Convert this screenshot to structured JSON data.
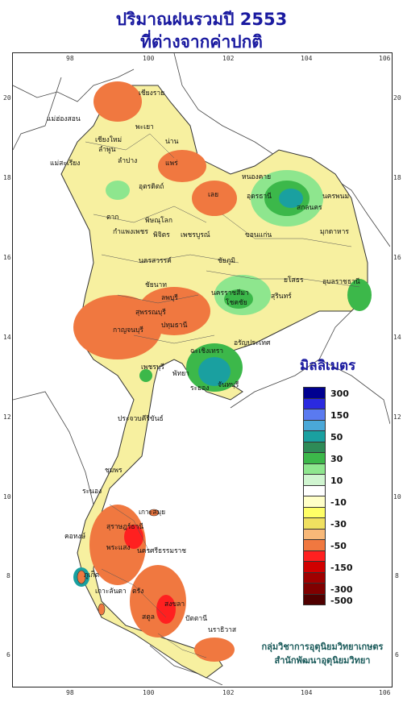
{
  "title": {
    "line1": "ปริมาณฝนรวมปี 2553",
    "line2": "ที่ต่างจากค่าปกติ"
  },
  "axes": {
    "x_ticks": [
      "98",
      "100",
      "102",
      "104",
      "106"
    ],
    "y_ticks": [
      "20",
      "18",
      "16",
      "14",
      "12",
      "10",
      "8",
      "6"
    ]
  },
  "legend": {
    "title": "มิลลิเมตร",
    "entries": [
      {
        "label": "300",
        "color": "#000090"
      },
      {
        "label": "",
        "color": "#2a2ae0"
      },
      {
        "label": "150",
        "color": "#5a7af0"
      },
      {
        "label": "",
        "color": "#4aa8d8"
      },
      {
        "label": "50",
        "color": "#1aa0a0"
      },
      {
        "label": "",
        "color": "#2e8b57"
      },
      {
        "label": "30",
        "color": "#3cb84a"
      },
      {
        "label": "",
        "color": "#8ee68e"
      },
      {
        "label": "10",
        "color": "#d0f5d0"
      },
      {
        "label": "",
        "color": "#ffffff"
      },
      {
        "label": "-10",
        "color": "#ffffc8"
      },
      {
        "label": "",
        "color": "#ffff66"
      },
      {
        "label": "-30",
        "color": "#f0e060"
      },
      {
        "label": "",
        "color": "#f8b878"
      },
      {
        "label": "-50",
        "color": "#f07840"
      },
      {
        "label": "",
        "color": "#ff2020"
      },
      {
        "label": "-150",
        "color": "#d00000"
      },
      {
        "label": "",
        "color": "#a00000"
      },
      {
        "label": "-300",
        "color": "#800000"
      },
      {
        "label": "-500",
        "color": "#500000"
      }
    ]
  },
  "credit": {
    "line1": "กลุ่มวิชาการอุตุนิยมวิทยาเกษตร",
    "line2": "สำนักพัฒนาอุตุนิยมวิทยา"
  },
  "places": [
    {
      "name": "เชียงราย",
      "color": "#111"
    },
    {
      "name": "แม่ฮ่องสอน",
      "color": "#111"
    },
    {
      "name": "พะเยา",
      "color": "#111"
    },
    {
      "name": "เชียงใหม่",
      "color": "#111"
    },
    {
      "name": "ลำพูน",
      "color": "#111"
    },
    {
      "name": "น่าน",
      "color": "#111"
    },
    {
      "name": "ลำปาง",
      "color": "#111"
    },
    {
      "name": "แม่สะเรียง",
      "color": "#111"
    },
    {
      "name": "แพร่",
      "color": "#111"
    },
    {
      "name": "อุตรดิตถ์",
      "color": "#111"
    },
    {
      "name": "หนองคาย",
      "color": "#111"
    },
    {
      "name": "เลย",
      "color": "#111"
    },
    {
      "name": "อุดรธานี",
      "color": "#111"
    },
    {
      "name": "นครพนม",
      "color": "#111"
    },
    {
      "name": "สกลนคร",
      "color": "#111"
    },
    {
      "name": "ตาก",
      "color": "#111"
    },
    {
      "name": "พิษณุโลก",
      "color": "#111"
    },
    {
      "name": "มุกดาหาร",
      "color": "#111"
    },
    {
      "name": "กำแพงเพชร",
      "color": "#111"
    },
    {
      "name": "พิจิตร",
      "color": "#111"
    },
    {
      "name": "เพชรบูรณ์",
      "color": "#111"
    },
    {
      "name": "ขอนแก่น",
      "color": "#111"
    },
    {
      "name": "นครสวรรค์",
      "color": "#111"
    },
    {
      "name": "ชัยภูมิ",
      "color": "#111"
    },
    {
      "name": "อุบลราชธานี",
      "color": "#111"
    },
    {
      "name": "ชัยนาท",
      "color": "#111"
    },
    {
      "name": "ลพบุรี",
      "color": "#111"
    },
    {
      "name": "ยโสธร",
      "color": "#111"
    },
    {
      "name": "นครราชสีมา",
      "color": "#111"
    },
    {
      "name": "สุพรรณบุรี",
      "color": "#111"
    },
    {
      "name": "โชคชัย",
      "color": "#111"
    },
    {
      "name": "สุรินทร์",
      "color": "#111"
    },
    {
      "name": "กาญจนบุรี",
      "color": "#111"
    },
    {
      "name": "ปทุมธานี",
      "color": "#111"
    },
    {
      "name": "อรัญประเทศ",
      "color": "#111"
    },
    {
      "name": "ฉะเชิงเทรา",
      "color": "#111"
    },
    {
      "name": "เพชรบุรี",
      "color": "#111"
    },
    {
      "name": "พัทยา",
      "color": "#111"
    },
    {
      "name": "ระยอง",
      "color": "#111"
    },
    {
      "name": "จันทบุรี",
      "color": "#111"
    },
    {
      "name": "ประจวบคีรีขันธ์",
      "color": "#111"
    },
    {
      "name": "ชุมพร",
      "color": "#111"
    },
    {
      "name": "ระนอง",
      "color": "#111"
    },
    {
      "name": "เกาะสมุย",
      "color": "#111"
    },
    {
      "name": "สุราษฎร์ธานี",
      "color": "#111"
    },
    {
      "name": "คอหงษ์",
      "color": "#111"
    },
    {
      "name": "พระแสง",
      "color": "#111"
    },
    {
      "name": "นครศรีธรรมราช",
      "color": "#111"
    },
    {
      "name": "ภูเก็ต",
      "color": "#111"
    },
    {
      "name": "เกาะลันตา",
      "color": "#111"
    },
    {
      "name": "ตรัง",
      "color": "#111"
    },
    {
      "name": "สตูล",
      "color": "#111"
    },
    {
      "name": "สงขลา",
      "color": "#111"
    },
    {
      "name": "ปัตตานี",
      "color": "#111"
    },
    {
      "name": "นราธิวาส",
      "color": "#111"
    }
  ]
}
